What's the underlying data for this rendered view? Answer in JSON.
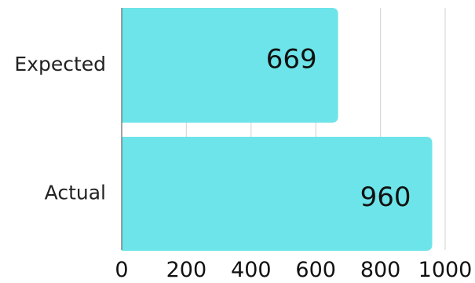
{
  "chart_data": {
    "type": "bar",
    "orientation": "horizontal",
    "title": "",
    "xlabel": "",
    "ylabel": "",
    "categories": [
      "Expected",
      "Actual"
    ],
    "values": [
      669,
      960
    ],
    "value_labels": [
      "669",
      "960"
    ],
    "xlim": [
      0,
      1000
    ],
    "xticks": [
      0,
      200,
      400,
      600,
      800,
      1000
    ],
    "xtick_labels": [
      "0",
      "200",
      "400",
      "600",
      "800",
      "1000"
    ],
    "grid": "vertical",
    "legend": "none",
    "colors": {
      "bar": "#6de4e9",
      "grid": "#d9d9d9",
      "axis": "#666666"
    }
  }
}
